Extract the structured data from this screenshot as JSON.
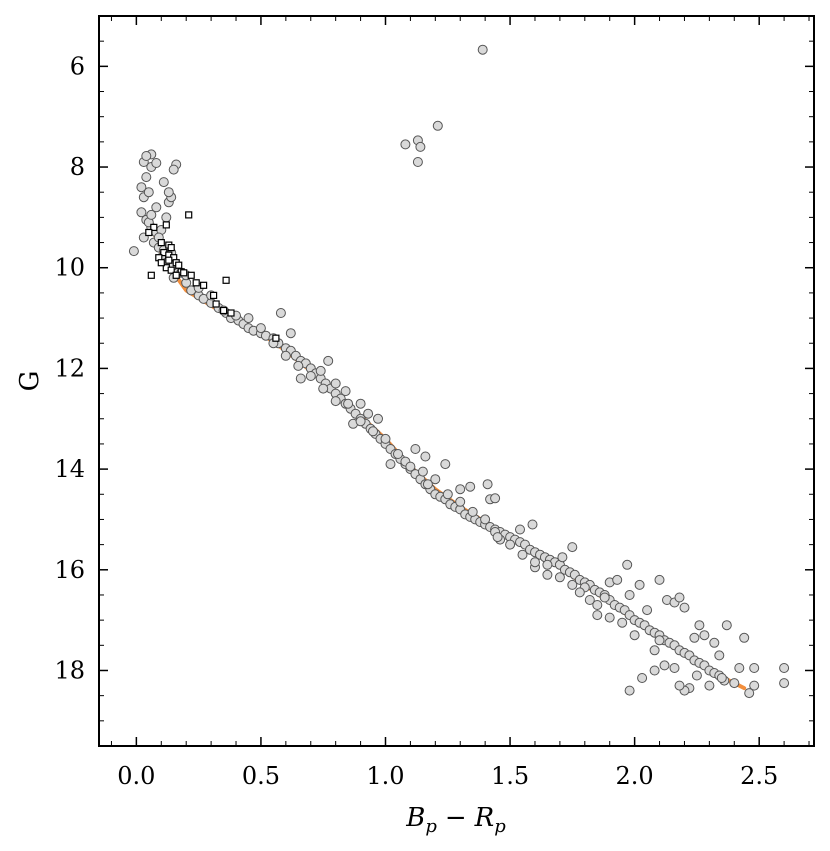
{
  "chart_data": {
    "type": "scatter",
    "title": "",
    "xlabel_parts": {
      "a": "B",
      "a_sub": "p",
      "op": "−",
      "b": "R",
      "b_sub": "p"
    },
    "ylabel": "G",
    "xlim": [
      -0.15,
      2.72
    ],
    "ylim": [
      19.5,
      5.0
    ],
    "y_inverted": true,
    "x_ticks": [
      {
        "value": 0.0,
        "label": "0.0"
      },
      {
        "value": 0.5,
        "label": "0.5"
      },
      {
        "value": 1.0,
        "label": "1.0"
      },
      {
        "value": 1.5,
        "label": "1.5"
      },
      {
        "value": 2.0,
        "label": "2.0"
      },
      {
        "value": 2.5,
        "label": "2.5"
      }
    ],
    "y_ticks": [
      {
        "value": 6,
        "label": "6"
      },
      {
        "value": 8,
        "label": "8"
      },
      {
        "value": 10,
        "label": "10"
      },
      {
        "value": 12,
        "label": "12"
      },
      {
        "value": 14,
        "label": "14"
      },
      {
        "value": 16,
        "label": "16"
      },
      {
        "value": 18,
        "label": "18"
      }
    ],
    "x_minor_step": 0.1,
    "y_minor_step": 0.5,
    "grid": false,
    "colors": {
      "circle_fill": "#d9d9d9",
      "circle_stroke": "#555555",
      "square_fill": "#ffffff",
      "square_stroke": "#000000",
      "fit_line": "#f28e3c"
    },
    "series": [
      {
        "marker": "circle",
        "points": [
          [
            1.39,
            5.67
          ],
          [
            1.21,
            7.18
          ],
          [
            1.13,
            7.47
          ],
          [
            1.08,
            7.55
          ],
          [
            1.14,
            7.6
          ],
          [
            1.13,
            7.9
          ],
          [
            -0.01,
            9.67
          ],
          [
            0.02,
            8.4
          ],
          [
            0.03,
            8.6
          ],
          [
            0.04,
            8.2
          ],
          [
            0.05,
            8.5
          ],
          [
            0.06,
            8.0
          ],
          [
            0.03,
            7.9
          ],
          [
            0.06,
            7.75
          ],
          [
            0.04,
            7.78
          ],
          [
            0.08,
            7.92
          ],
          [
            0.16,
            7.95
          ],
          [
            0.15,
            8.05
          ],
          [
            0.02,
            8.9
          ],
          [
            0.04,
            9.05
          ],
          [
            0.06,
            9.2
          ],
          [
            0.03,
            9.4
          ],
          [
            0.07,
            9.5
          ],
          [
            0.05,
            9.1
          ],
          [
            0.08,
            9.3
          ],
          [
            0.09,
            9.6
          ],
          [
            0.1,
            9.25
          ],
          [
            0.12,
            9.0
          ],
          [
            0.13,
            8.7
          ],
          [
            0.14,
            8.6
          ],
          [
            0.11,
            8.3
          ],
          [
            0.13,
            8.5
          ],
          [
            0.08,
            8.8
          ],
          [
            0.06,
            8.95
          ],
          [
            0.1,
            9.8
          ],
          [
            0.12,
            9.9
          ],
          [
            0.14,
            9.7
          ],
          [
            0.16,
            10.0
          ],
          [
            0.18,
            10.1
          ],
          [
            0.15,
            10.2
          ],
          [
            0.2,
            10.3
          ],
          [
            0.22,
            10.45
          ],
          [
            0.25,
            10.55
          ],
          [
            0.27,
            10.62
          ],
          [
            0.3,
            10.7
          ],
          [
            0.33,
            10.8
          ],
          [
            0.36,
            10.9
          ],
          [
            0.38,
            11.0
          ],
          [
            0.41,
            11.05
          ],
          [
            0.43,
            11.12
          ],
          [
            0.45,
            11.2
          ],
          [
            0.47,
            11.25
          ],
          [
            0.5,
            11.3
          ],
          [
            0.52,
            11.35
          ],
          [
            0.55,
            11.4
          ],
          [
            0.57,
            11.5
          ],
          [
            0.6,
            11.6
          ],
          [
            0.62,
            11.65
          ],
          [
            0.64,
            11.75
          ],
          [
            0.66,
            11.85
          ],
          [
            0.68,
            11.9
          ],
          [
            0.7,
            12.0
          ],
          [
            0.72,
            12.1
          ],
          [
            0.74,
            12.2
          ],
          [
            0.76,
            12.3
          ],
          [
            0.78,
            12.4
          ],
          [
            0.8,
            12.5
          ],
          [
            0.82,
            12.6
          ],
          [
            0.84,
            12.7
          ],
          [
            0.86,
            12.8
          ],
          [
            0.88,
            12.9
          ],
          [
            0.9,
            13.0
          ],
          [
            0.92,
            13.1
          ],
          [
            0.94,
            13.2
          ],
          [
            0.96,
            13.3
          ],
          [
            0.98,
            13.4
          ],
          [
            1.0,
            13.5
          ],
          [
            1.02,
            13.6
          ],
          [
            1.04,
            13.7
          ],
          [
            1.06,
            13.8
          ],
          [
            1.08,
            13.9
          ],
          [
            1.1,
            14.0
          ],
          [
            1.12,
            14.1
          ],
          [
            1.14,
            14.2
          ],
          [
            1.16,
            14.3
          ],
          [
            1.18,
            14.4
          ],
          [
            1.2,
            14.5
          ],
          [
            1.22,
            14.55
          ],
          [
            1.24,
            14.6
          ],
          [
            1.26,
            14.7
          ],
          [
            1.28,
            14.75
          ],
          [
            1.3,
            14.8
          ],
          [
            1.32,
            14.9
          ],
          [
            1.34,
            14.95
          ],
          [
            1.36,
            15.0
          ],
          [
            1.38,
            15.05
          ],
          [
            1.4,
            15.1
          ],
          [
            1.42,
            15.15
          ],
          [
            1.44,
            15.2
          ],
          [
            1.46,
            15.25
          ],
          [
            1.48,
            15.3
          ],
          [
            1.5,
            15.35
          ],
          [
            1.52,
            15.4
          ],
          [
            1.54,
            15.45
          ],
          [
            1.56,
            15.5
          ],
          [
            1.58,
            15.6
          ],
          [
            1.6,
            15.65
          ],
          [
            1.62,
            15.7
          ],
          [
            1.64,
            15.75
          ],
          [
            1.66,
            15.8
          ],
          [
            1.68,
            15.85
          ],
          [
            1.7,
            15.9
          ],
          [
            1.72,
            16.0
          ],
          [
            1.74,
            16.05
          ],
          [
            1.76,
            16.1
          ],
          [
            1.78,
            16.2
          ],
          [
            1.8,
            16.25
          ],
          [
            1.82,
            16.3
          ],
          [
            1.84,
            16.4
          ],
          [
            1.86,
            16.45
          ],
          [
            1.88,
            16.5
          ],
          [
            1.9,
            16.6
          ],
          [
            1.92,
            16.7
          ],
          [
            1.94,
            16.75
          ],
          [
            1.96,
            16.8
          ],
          [
            1.98,
            16.9
          ],
          [
            2.0,
            17.0
          ],
          [
            2.02,
            17.05
          ],
          [
            2.04,
            17.1
          ],
          [
            2.06,
            17.2
          ],
          [
            2.08,
            17.25
          ],
          [
            2.1,
            17.3
          ],
          [
            2.12,
            17.4
          ],
          [
            2.14,
            17.45
          ],
          [
            2.16,
            17.5
          ],
          [
            2.18,
            17.6
          ],
          [
            2.2,
            17.65
          ],
          [
            2.22,
            17.7
          ],
          [
            2.24,
            17.8
          ],
          [
            2.26,
            17.85
          ],
          [
            2.28,
            17.9
          ],
          [
            2.3,
            18.0
          ],
          [
            2.32,
            18.05
          ],
          [
            2.34,
            18.1
          ],
          [
            2.36,
            18.2
          ],
          [
            2.4,
            18.25
          ],
          [
            0.58,
            10.9
          ],
          [
            0.62,
            11.3
          ],
          [
            0.66,
            12.2
          ],
          [
            0.74,
            12.05
          ],
          [
            0.77,
            11.85
          ],
          [
            0.8,
            12.3
          ],
          [
            0.84,
            12.45
          ],
          [
            0.87,
            13.1
          ],
          [
            0.9,
            12.7
          ],
          [
            0.93,
            12.9
          ],
          [
            0.97,
            13.0
          ],
          [
            1.02,
            13.9
          ],
          [
            1.08,
            13.85
          ],
          [
            1.12,
            13.6
          ],
          [
            1.16,
            13.75
          ],
          [
            1.17,
            14.3
          ],
          [
            1.24,
            13.9
          ],
          [
            1.3,
            14.4
          ],
          [
            1.34,
            14.35
          ],
          [
            1.41,
            14.3
          ],
          [
            1.42,
            14.6
          ],
          [
            1.44,
            14.58
          ],
          [
            1.44,
            15.25
          ],
          [
            1.46,
            15.4
          ],
          [
            1.54,
            15.2
          ],
          [
            1.59,
            15.1
          ],
          [
            1.6,
            15.95
          ],
          [
            1.65,
            16.1
          ],
          [
            1.71,
            15.75
          ],
          [
            1.75,
            15.55
          ],
          [
            1.8,
            16.35
          ],
          [
            1.85,
            16.7
          ],
          [
            1.88,
            16.55
          ],
          [
            1.9,
            16.25
          ],
          [
            1.93,
            16.2
          ],
          [
            1.97,
            15.9
          ],
          [
            1.98,
            16.5
          ],
          [
            2.02,
            16.3
          ],
          [
            2.05,
            16.8
          ],
          [
            2.1,
            16.2
          ],
          [
            2.13,
            16.6
          ],
          [
            2.16,
            16.65
          ],
          [
            2.18,
            16.55
          ],
          [
            2.2,
            16.75
          ],
          [
            2.24,
            17.35
          ],
          [
            2.26,
            17.1
          ],
          [
            2.28,
            17.3
          ],
          [
            2.32,
            17.45
          ],
          [
            2.34,
            17.7
          ],
          [
            2.37,
            17.1
          ],
          [
            2.42,
            17.95
          ],
          [
            2.44,
            17.35
          ],
          [
            2.48,
            17.95
          ],
          [
            2.48,
            18.3
          ],
          [
            2.46,
            18.45
          ],
          [
            2.6,
            17.95
          ],
          [
            2.6,
            18.25
          ],
          [
            2.22,
            18.35
          ],
          [
            2.2,
            18.4
          ],
          [
            2.18,
            18.3
          ],
          [
            1.98,
            18.4
          ],
          [
            2.03,
            18.15
          ],
          [
            2.08,
            18.0
          ],
          [
            2.12,
            17.9
          ],
          [
            2.3,
            18.3
          ],
          [
            2.35,
            18.15
          ],
          [
            2.25,
            18.1
          ],
          [
            2.16,
            17.95
          ],
          [
            2.08,
            17.6
          ],
          [
            2.1,
            17.4
          ],
          [
            2.0,
            17.3
          ],
          [
            1.95,
            17.05
          ],
          [
            1.9,
            16.95
          ],
          [
            1.85,
            16.9
          ],
          [
            1.82,
            16.6
          ],
          [
            1.78,
            16.45
          ],
          [
            1.75,
            16.3
          ],
          [
            1.7,
            16.15
          ],
          [
            1.65,
            15.9
          ],
          [
            1.6,
            15.85
          ],
          [
            1.55,
            15.7
          ],
          [
            1.5,
            15.5
          ],
          [
            1.45,
            15.35
          ],
          [
            1.4,
            15.0
          ],
          [
            1.35,
            14.85
          ],
          [
            1.3,
            14.65
          ],
          [
            1.25,
            14.5
          ],
          [
            1.2,
            14.2
          ],
          [
            1.15,
            14.05
          ],
          [
            1.1,
            13.95
          ],
          [
            1.05,
            13.7
          ],
          [
            1.0,
            13.4
          ],
          [
            0.95,
            13.25
          ],
          [
            0.9,
            13.05
          ],
          [
            0.85,
            12.7
          ],
          [
            0.8,
            12.65
          ],
          [
            0.75,
            12.4
          ],
          [
            0.7,
            12.15
          ],
          [
            0.65,
            11.95
          ],
          [
            0.6,
            11.75
          ],
          [
            0.55,
            11.5
          ],
          [
            0.5,
            11.2
          ],
          [
            0.45,
            11.0
          ],
          [
            0.4,
            10.95
          ],
          [
            0.35,
            10.85
          ],
          [
            0.3,
            10.55
          ],
          [
            0.25,
            10.4
          ],
          [
            0.2,
            10.15
          ],
          [
            0.15,
            9.95
          ],
          [
            0.11,
            9.65
          ],
          [
            0.09,
            9.4
          ]
        ]
      },
      {
        "marker": "square",
        "points": [
          [
            0.21,
            8.95
          ],
          [
            0.12,
            9.15
          ],
          [
            0.07,
            9.2
          ],
          [
            0.05,
            9.3
          ],
          [
            0.1,
            9.5
          ],
          [
            0.13,
            9.55
          ],
          [
            0.14,
            9.6
          ],
          [
            0.11,
            9.7
          ],
          [
            0.13,
            9.75
          ],
          [
            0.15,
            9.8
          ],
          [
            0.16,
            9.9
          ],
          [
            0.17,
            9.95
          ],
          [
            0.12,
            10.0
          ],
          [
            0.14,
            10.05
          ],
          [
            0.18,
            10.08
          ],
          [
            0.19,
            10.1
          ],
          [
            0.22,
            10.15
          ],
          [
            0.24,
            10.3
          ],
          [
            0.27,
            10.35
          ],
          [
            0.36,
            10.25
          ],
          [
            0.06,
            10.15
          ],
          [
            0.16,
            10.15
          ],
          [
            0.31,
            10.55
          ],
          [
            0.32,
            10.72
          ],
          [
            0.35,
            10.85
          ],
          [
            0.38,
            10.9
          ],
          [
            0.56,
            11.4
          ],
          [
            0.13,
            9.85
          ],
          [
            0.09,
            9.8
          ],
          [
            0.1,
            9.9
          ]
        ]
      }
    ],
    "fit_line": [
      [
        0.06,
        9.15
      ],
      [
        0.1,
        9.7
      ],
      [
        0.15,
        10.1
      ],
      [
        0.2,
        10.45
      ],
      [
        0.3,
        10.75
      ],
      [
        0.4,
        11.05
      ],
      [
        0.5,
        11.3
      ],
      [
        0.6,
        11.65
      ],
      [
        0.7,
        12.05
      ],
      [
        0.8,
        12.5
      ],
      [
        0.9,
        12.95
      ],
      [
        1.0,
        13.4
      ],
      [
        1.1,
        13.95
      ],
      [
        1.2,
        14.4
      ],
      [
        1.3,
        14.75
      ],
      [
        1.4,
        15.05
      ],
      [
        1.5,
        15.35
      ],
      [
        1.6,
        15.65
      ],
      [
        1.7,
        15.95
      ],
      [
        1.8,
        16.3
      ],
      [
        1.9,
        16.65
      ],
      [
        2.0,
        17.0
      ],
      [
        2.1,
        17.3
      ],
      [
        2.2,
        17.65
      ],
      [
        2.3,
        18.0
      ],
      [
        2.44,
        18.35
      ]
    ]
  }
}
